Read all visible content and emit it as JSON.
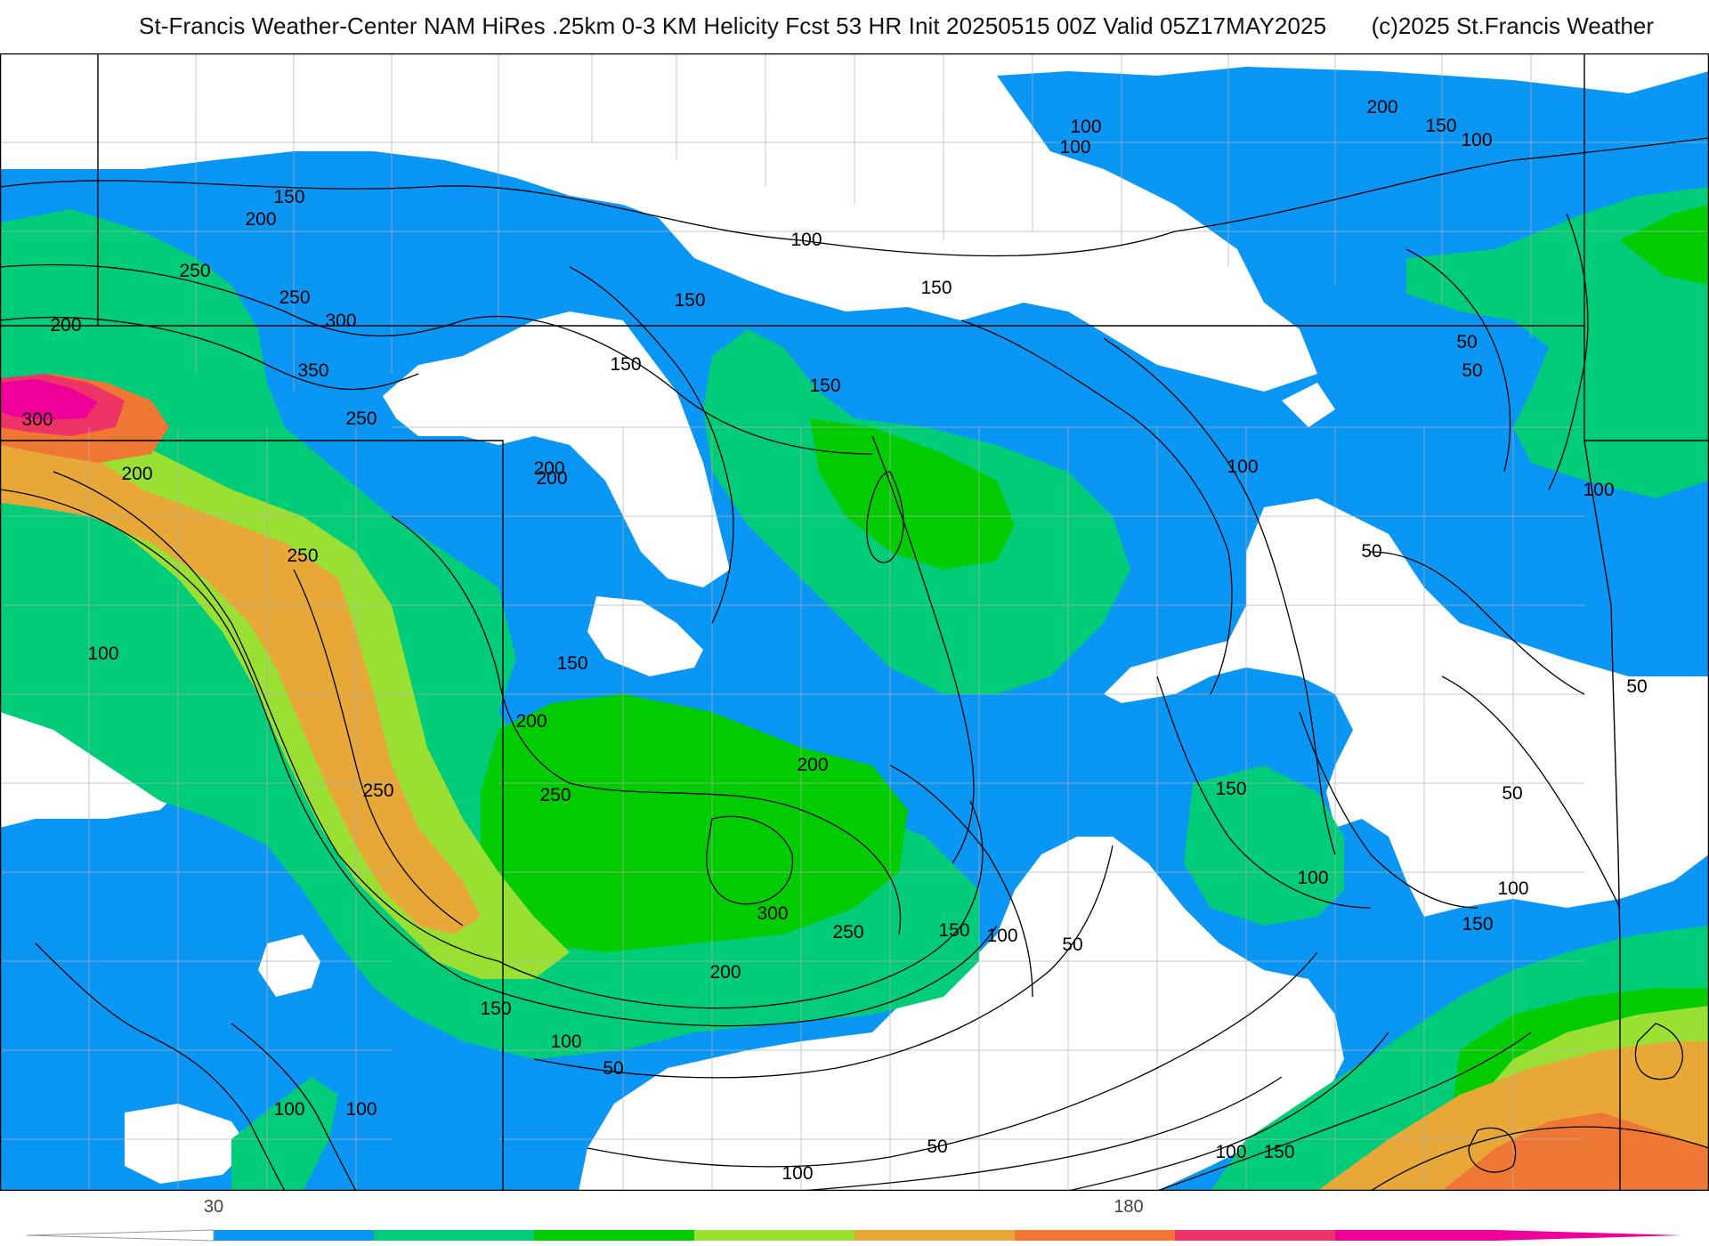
{
  "title": "St-Francis Weather-Center NAM HiRes .25km 0-3 KM Helicity Fcst 53 HR Init 20250515 00Z  Valid 05Z17MAY2025",
  "copyright": "(c)2025 St.Francis Weather",
  "colors": {
    "background": "#ffffff",
    "band_50_100": "#0a96f5",
    "band_100_150": "#00cc7a",
    "band_150_200": "#00cc00",
    "band_200_250": "#99e033",
    "band_250_300": "#e8a838",
    "band_300_350": "#ee7733",
    "band_350_400": "#ee3366",
    "band_400_plus": "#ee0099",
    "contour_line": "#000000",
    "state_border": "#000000",
    "county_line": "#b0b0b0"
  },
  "colorbar": {
    "tick_labels": [
      "30",
      "180"
    ],
    "segments": [
      "#0a96f5",
      "#00cc7a",
      "#00cc00",
      "#99e033",
      "#e8a838",
      "#ee7733",
      "#ee3366",
      "#ee0099"
    ],
    "left_arrow_color": "#ffffff",
    "right_arrow_color": "#ee0099"
  },
  "contour_labels": [
    "100",
    "100",
    "200",
    "150",
    "100",
    "150",
    "200",
    "100",
    "150",
    "250",
    "250",
    "300",
    "200",
    "150",
    "150",
    "350",
    "150",
    "50",
    "50",
    "300",
    "250",
    "200",
    "100",
    "200",
    "200",
    "100",
    "50",
    "250",
    "100",
    "150",
    "50",
    "200",
    "200",
    "250",
    "150",
    "50",
    "250",
    "300",
    "250",
    "150",
    "100",
    "50",
    "100",
    "100",
    "200",
    "150",
    "100",
    "50",
    "150",
    "100",
    "100",
    "50",
    "100",
    "100",
    "150"
  ]
}
